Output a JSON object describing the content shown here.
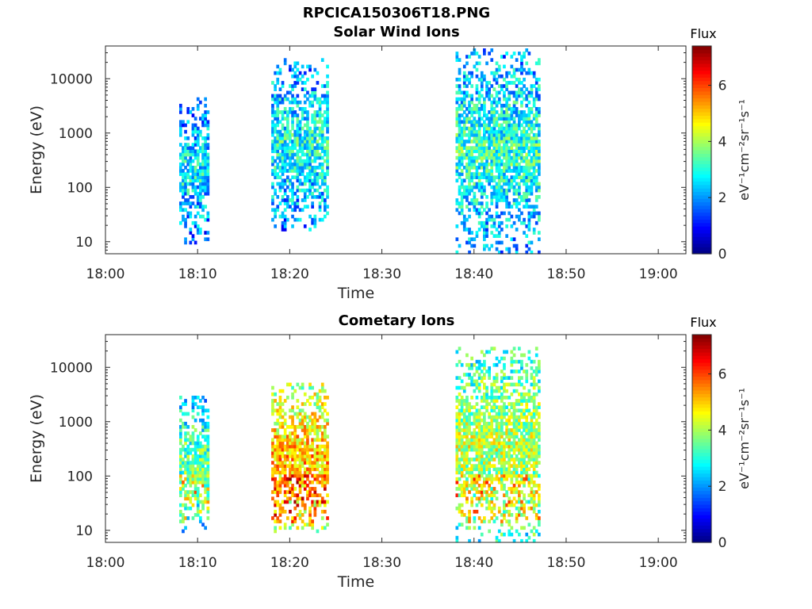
{
  "figure_title": "RPCICA150306T18.PNG",
  "chart_data": [
    {
      "type": "heatmap",
      "title": "Solar Wind Ions",
      "xlabel": "Time",
      "ylabel": "Energy (eV)",
      "y_scale": "log",
      "ylim": [
        6,
        40000
      ],
      "xlim": [
        "18:00",
        "19:03"
      ],
      "x_ticks": [
        "18:00",
        "18:10",
        "18:20",
        "18:30",
        "18:40",
        "18:50",
        "19:00"
      ],
      "y_ticks": [
        "10",
        "100",
        "1000",
        "10000"
      ],
      "colorbar": {
        "label_title": "Flux",
        "label": "eV⁻¹cm⁻²sr⁻¹s⁻¹",
        "range": [
          0,
          7.4
        ],
        "ticks": [
          "0",
          "2",
          "4",
          "6"
        ],
        "colormap": "jet"
      },
      "observation_intervals": [
        {
          "start": "18:08",
          "end": "18:11",
          "emin": 8,
          "emax": 4000,
          "typical_flux": 2.8
        },
        {
          "start": "18:18",
          "end": "18:24",
          "emin": 15,
          "emax": 22000,
          "typical_flux": 3.0
        },
        {
          "start": "18:38",
          "end": "18:47",
          "emin": 6,
          "emax": 35000,
          "typical_flux": 3.2
        }
      ]
    },
    {
      "type": "heatmap",
      "title": "Cometary Ions",
      "xlabel": "Time",
      "ylabel": "Energy (eV)",
      "y_scale": "log",
      "ylim": [
        6,
        40000
      ],
      "xlim": [
        "18:00",
        "19:03"
      ],
      "x_ticks": [
        "18:00",
        "18:10",
        "18:20",
        "18:30",
        "18:40",
        "18:50",
        "19:00"
      ],
      "y_ticks": [
        "10",
        "100",
        "1000",
        "10000"
      ],
      "colorbar": {
        "label_title": "Flux",
        "label": "eV⁻¹cm⁻²sr⁻¹s⁻¹",
        "range": [
          0,
          7.4
        ],
        "ticks": [
          "0",
          "2",
          "4",
          "6"
        ],
        "colormap": "jet"
      },
      "observation_intervals": [
        {
          "start": "18:08",
          "end": "18:11",
          "emin": 8,
          "emax": 3000,
          "typical_flux": 3.6
        },
        {
          "start": "18:18",
          "end": "18:24",
          "emin": 8,
          "emax": 5000,
          "typical_flux": 5.2
        },
        {
          "start": "18:38",
          "end": "18:47",
          "emin": 6,
          "emax": 22000,
          "typical_flux": 4.2
        }
      ]
    }
  ]
}
